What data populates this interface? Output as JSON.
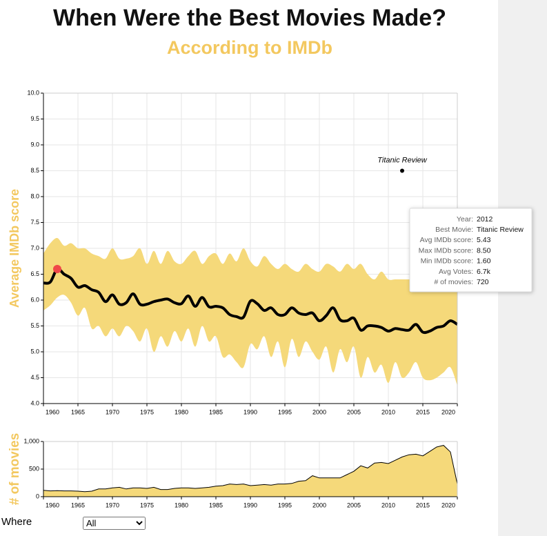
{
  "header": {
    "title": "When Were the Best Movies Made?",
    "subtitle": "According to IMDb"
  },
  "chart_data": [
    {
      "type": "line",
      "y_label": "Average IMDb score",
      "x": [
        1960,
        1961,
        1962,
        1963,
        1964,
        1965,
        1966,
        1967,
        1968,
        1969,
        1970,
        1971,
        1972,
        1973,
        1974,
        1975,
        1976,
        1977,
        1978,
        1979,
        1980,
        1981,
        1982,
        1983,
        1984,
        1985,
        1986,
        1987,
        1988,
        1989,
        1990,
        1991,
        1992,
        1993,
        1994,
        1995,
        1996,
        1997,
        1998,
        1999,
        2000,
        2001,
        2002,
        2003,
        2004,
        2005,
        2006,
        2007,
        2008,
        2009,
        2010,
        2011,
        2012,
        2013,
        2014,
        2015,
        2016,
        2017,
        2018,
        2019,
        2020
      ],
      "series": [
        {
          "color": "#000000",
          "values": [
            6.33,
            6.35,
            6.6,
            6.5,
            6.42,
            6.25,
            6.28,
            6.2,
            6.15,
            5.97,
            6.1,
            5.92,
            5.95,
            6.12,
            5.92,
            5.92,
            5.97,
            6.0,
            6.02,
            5.95,
            5.93,
            6.08,
            5.88,
            6.05,
            5.87,
            5.88,
            5.85,
            5.72,
            5.68,
            5.67,
            5.98,
            5.93,
            5.8,
            5.85,
            5.72,
            5.72,
            5.85,
            5.75,
            5.72,
            5.75,
            5.6,
            5.7,
            5.85,
            5.62,
            5.6,
            5.65,
            5.42,
            5.5,
            5.5,
            5.47,
            5.4,
            5.45,
            5.43,
            5.42,
            5.53,
            5.38,
            5.4,
            5.47,
            5.5,
            5.6,
            5.53
          ]
        }
      ],
      "band": {
        "color": "#f5d97a",
        "upper": [
          6.9,
          7.1,
          7.2,
          7.05,
          7.1,
          7.0,
          7.0,
          6.9,
          6.85,
          6.8,
          7.0,
          6.8,
          6.8,
          6.85,
          7.0,
          6.7,
          6.95,
          6.7,
          6.95,
          6.75,
          6.7,
          6.85,
          6.95,
          6.7,
          6.85,
          6.9,
          6.7,
          6.9,
          6.75,
          7.0,
          6.75,
          6.65,
          6.85,
          6.7,
          6.6,
          6.7,
          6.6,
          6.55,
          6.7,
          6.6,
          6.55,
          6.7,
          6.65,
          6.55,
          6.7,
          6.6,
          6.7,
          6.5,
          6.4,
          6.55,
          6.4,
          6.4,
          6.4,
          6.4,
          6.4,
          6.4,
          6.4,
          6.4,
          6.4,
          6.4,
          6.4
        ],
        "lower": [
          5.8,
          5.9,
          6.05,
          6.1,
          5.95,
          5.7,
          5.85,
          5.45,
          5.5,
          5.3,
          5.45,
          5.3,
          5.5,
          5.4,
          5.2,
          5.45,
          5.0,
          5.3,
          5.1,
          5.4,
          5.2,
          5.45,
          5.1,
          5.5,
          5.2,
          5.3,
          4.9,
          4.95,
          4.8,
          4.7,
          5.15,
          5.05,
          5.3,
          4.9,
          5.2,
          4.7,
          5.25,
          4.9,
          5.2,
          5.0,
          4.85,
          5.1,
          4.6,
          5.05,
          4.8,
          5.1,
          4.5,
          4.9,
          4.6,
          4.75,
          4.4,
          4.8,
          4.5,
          4.6,
          4.8,
          4.5,
          4.45,
          4.5,
          4.6,
          4.7,
          4.35
        ]
      },
      "highlight": {
        "index": 2,
        "color": "#f04848"
      },
      "annotation": {
        "text": "Titanic Review",
        "x": 2012,
        "y": 8.5
      },
      "xlim": [
        1960,
        2020
      ],
      "xticks": [
        1960,
        1965,
        1970,
        1975,
        1980,
        1985,
        1990,
        1995,
        2000,
        2005,
        2010,
        2015,
        2020
      ],
      "ylim": [
        4,
        10
      ],
      "yticks": [
        {
          "value": 4,
          "label": "4.0"
        },
        4.5,
        {
          "value": 5,
          "label": "5.0"
        },
        5.5,
        {
          "value": 6,
          "label": "6.0"
        },
        6.5,
        {
          "value": 7,
          "label": "7.0"
        },
        7.5,
        {
          "value": 8,
          "label": "8.0"
        },
        8.5,
        {
          "value": 9,
          "label": "9.0"
        },
        9.5,
        {
          "value": 10,
          "label": "10.0"
        }
      ],
      "grid": true,
      "tooltip": {
        "rows": [
          [
            "Year:",
            "2012"
          ],
          [
            "Best Movie:",
            "Titanic Review"
          ],
          [
            "Avg IMDb score:",
            "5.43"
          ],
          [
            "Max IMDb score:",
            "8.50"
          ],
          [
            "Min IMDb score:",
            "1.60"
          ],
          [
            "Avg Votes:",
            "6.7k"
          ],
          [
            "# of movies:",
            "720"
          ]
        ]
      }
    },
    {
      "type": "area",
      "y_label": "# of movies",
      "color": "#f5d97a",
      "x": [
        1960,
        1961,
        1962,
        1963,
        1964,
        1965,
        1966,
        1967,
        1968,
        1969,
        1970,
        1971,
        1972,
        1973,
        1974,
        1975,
        1976,
        1977,
        1978,
        1979,
        1980,
        1981,
        1982,
        1983,
        1984,
        1985,
        1986,
        1987,
        1988,
        1989,
        1990,
        1991,
        1992,
        1993,
        1994,
        1995,
        1996,
        1997,
        1998,
        1999,
        2000,
        2001,
        2002,
        2003,
        2004,
        2005,
        2006,
        2007,
        2008,
        2009,
        2010,
        2011,
        2012,
        2013,
        2014,
        2015,
        2016,
        2017,
        2018,
        2019,
        2020
      ],
      "values": [
        115,
        105,
        110,
        105,
        105,
        100,
        90,
        100,
        140,
        140,
        160,
        170,
        140,
        160,
        160,
        150,
        170,
        130,
        130,
        150,
        160,
        160,
        150,
        160,
        170,
        190,
        200,
        230,
        220,
        230,
        200,
        210,
        220,
        210,
        230,
        230,
        240,
        280,
        290,
        380,
        340,
        340,
        340,
        340,
        400,
        460,
        560,
        520,
        610,
        620,
        600,
        660,
        720,
        760,
        770,
        740,
        820,
        900,
        930,
        810,
        230
      ],
      "xlim": [
        1960,
        2020
      ],
      "xticks": [
        1960,
        1965,
        1970,
        1975,
        1980,
        1985,
        1990,
        1995,
        2000,
        2005,
        2010,
        2015,
        2020
      ],
      "ylim": [
        0,
        1000
      ],
      "yticks": [
        0,
        500,
        {
          "value": 1000,
          "label": "1,000"
        }
      ],
      "grid": true
    }
  ],
  "controls": {
    "label": "Where",
    "options": [
      "All"
    ]
  }
}
